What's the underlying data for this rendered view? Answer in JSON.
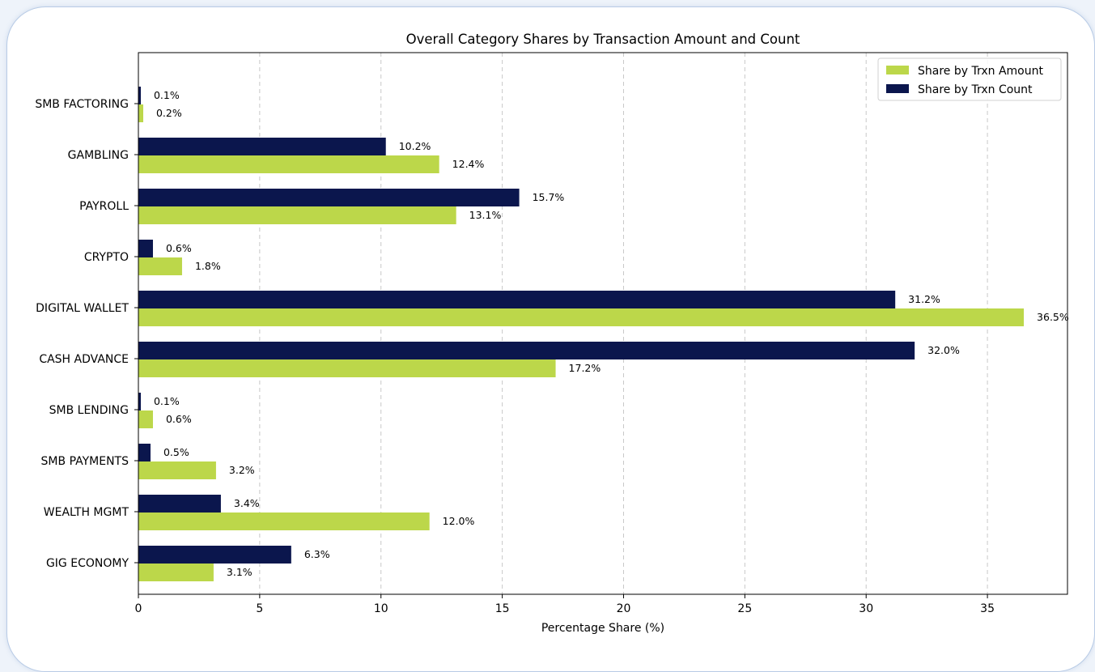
{
  "chart_data": {
    "type": "bar",
    "orientation": "horizontal",
    "title": "Overall Category Shares by Transaction Amount and Count",
    "xlabel": "Percentage Share (%)",
    "ylabel": "",
    "xlim": [
      0,
      38.3
    ],
    "xticks": [
      0,
      5,
      10,
      15,
      20,
      25,
      30,
      35
    ],
    "grid": "vertical dashed",
    "legend_position": "top-right",
    "categories": [
      "SMB FACTORING",
      "GAMBLING",
      "PAYROLL",
      "CRYPTO",
      "DIGITAL WALLET",
      "CASH ADVANCE",
      "SMB LENDING",
      "SMB PAYMENTS",
      "WEALTH MGMT",
      "GIG ECONOMY"
    ],
    "series": [
      {
        "name": "Share by Trxn Amount",
        "color": "#bcd74a",
        "values": [
          0.2,
          12.4,
          13.1,
          1.8,
          36.5,
          17.2,
          0.6,
          3.2,
          12.0,
          3.1
        ],
        "labels": [
          "0.2%",
          "12.4%",
          "13.1%",
          "1.8%",
          "36.5%",
          "17.2%",
          "0.6%",
          "3.2%",
          "12.0%",
          "3.1%"
        ]
      },
      {
        "name": "Share by Trxn Count",
        "color": "#0b164d",
        "values": [
          0.1,
          10.2,
          15.7,
          0.6,
          31.2,
          32.0,
          0.1,
          0.5,
          3.4,
          6.3
        ],
        "labels": [
          "0.1%",
          "10.2%",
          "15.7%",
          "0.6%",
          "31.2%",
          "32.0%",
          "0.1%",
          "0.5%",
          "3.4%",
          "6.3%"
        ]
      }
    ]
  }
}
